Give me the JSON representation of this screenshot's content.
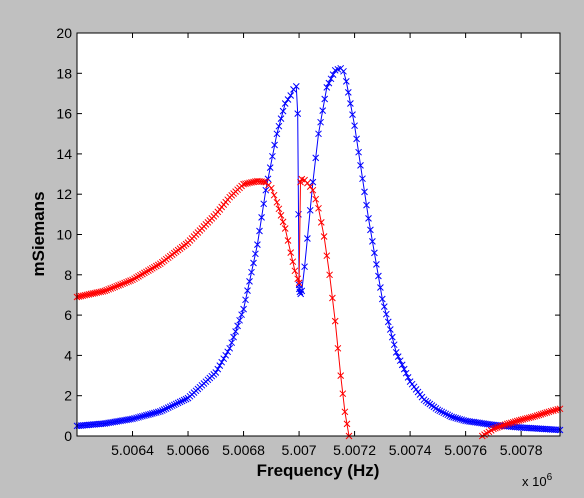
{
  "colors": {
    "figure_background": "#c0c0c0",
    "axes_background": "#ffffff",
    "series_blue": "#0000ff",
    "series_red": "#ff0000",
    "axis_color": "#000000"
  },
  "chart_data": {
    "type": "line",
    "title": "",
    "xlabel": "Frequency (Hz)",
    "ylabel": "mSiemans",
    "x_exponent_label": "x 10",
    "x_exponent_power": "6",
    "xlim": [
      5006200,
      5007940
    ],
    "ylim": [
      0,
      20
    ],
    "xticks": [
      5006400,
      5006600,
      5006800,
      5007000,
      5007200,
      5007400,
      5007600,
      5007800
    ],
    "xtick_labels": [
      "5.0064",
      "5.0066",
      "5.0068",
      "5.007",
      "5.0072",
      "5.0074",
      "5.0076",
      "5.0078"
    ],
    "yticks": [
      0,
      2,
      4,
      6,
      8,
      10,
      12,
      14,
      16,
      18,
      20
    ],
    "ytick_labels": [
      "0",
      "2",
      "4",
      "6",
      "8",
      "10",
      "12",
      "14",
      "16",
      "18",
      "20"
    ],
    "grid": false,
    "legend": "none",
    "marker": "x",
    "series": [
      {
        "color": "#0000ff",
        "x": [
          5006200,
          5006300,
          5006400,
          5006500,
          5006600,
          5006700,
          5006750,
          5006800,
          5006850,
          5006880,
          5006920,
          5006950,
          5006970,
          5006980,
          5006990,
          5006995,
          5006998,
          5007000,
          5007001,
          5007003,
          5007006,
          5007010,
          5007020,
          5007030,
          5007050,
          5007070,
          5007100,
          5007130,
          5007150,
          5007160,
          5007170,
          5007200,
          5007250,
          5007300,
          5007350,
          5007400,
          5007450,
          5007500,
          5007550,
          5007600,
          5007700,
          5007800,
          5007940
        ],
        "y": [
          0.5,
          0.62,
          0.85,
          1.22,
          1.88,
          3.15,
          4.35,
          6.3,
          9.5,
          12.2,
          15.0,
          16.5,
          16.9,
          17.2,
          17.35,
          16.0,
          11.0,
          7.5,
          7.3,
          7.15,
          7.05,
          7.2,
          8.4,
          9.8,
          12.6,
          15.0,
          17.3,
          18.15,
          18.25,
          18.1,
          17.6,
          15.4,
          10.8,
          6.8,
          4.15,
          2.7,
          1.8,
          1.3,
          0.95,
          0.75,
          0.55,
          0.42,
          0.3
        ]
      },
      {
        "color": "#ff0000",
        "x": [
          5006200,
          5006300,
          5006400,
          5006500,
          5006600,
          5006700,
          5006750,
          5006800,
          5006850,
          5006880,
          5006900,
          5006920,
          5006950,
          5006970,
          5006985,
          5006995,
          5007000,
          5007005,
          5007010,
          5007020,
          5007030,
          5007050,
          5007070,
          5007090,
          5007110,
          5007130,
          5007150,
          5007165,
          5007180
        ],
        "y": [
          6.9,
          7.2,
          7.75,
          8.55,
          9.6,
          11.0,
          11.85,
          12.5,
          12.65,
          12.6,
          12.3,
          11.6,
          10.3,
          9.1,
          8.2,
          7.8,
          7.6,
          12.6,
          12.75,
          12.7,
          12.55,
          12.2,
          11.3,
          9.9,
          8.0,
          5.7,
          3.0,
          1.2,
          0.0
        ]
      },
      {
        "color": "#ff0000",
        "x": [
          5007660,
          5007700,
          5007750,
          5007800,
          5007850,
          5007900,
          5007940
        ],
        "y": [
          0.0,
          0.35,
          0.6,
          0.8,
          0.98,
          1.2,
          1.35
        ]
      }
    ]
  }
}
